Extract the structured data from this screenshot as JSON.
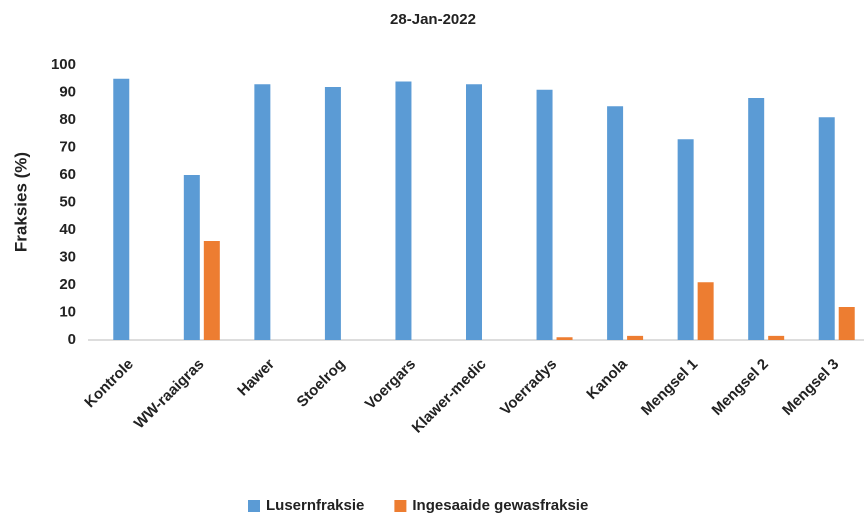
{
  "chart_data": {
    "type": "bar",
    "title": "28-Jan-2022",
    "y_label": "Fraksies (%)",
    "categories": [
      "Kontrole",
      "WW-raaigras",
      "Hawer",
      "Stoelrog",
      "Voergars",
      "Klawer-medic",
      "Voerradys",
      "Kanola",
      "Mengsel 1",
      "Mengsel 2",
      "Mengsel 3"
    ],
    "series": [
      {
        "name": "Lusernfraksie",
        "color": "#5b9bd5",
        "values": [
          95,
          60,
          93,
          92,
          94,
          93,
          91,
          85,
          73,
          88,
          81
        ]
      },
      {
        "name": "Ingesaaide gewasfraksie",
        "color": "#ed7d31",
        "values": [
          0,
          36,
          0,
          0,
          0,
          0,
          1,
          1.5,
          21,
          1.5,
          12
        ]
      }
    ],
    "ylim": [
      0,
      100
    ],
    "yticks": [
      0,
      10,
      20,
      30,
      40,
      50,
      60,
      70,
      80,
      90,
      100
    ],
    "grid": false,
    "legend": "bottom"
  }
}
